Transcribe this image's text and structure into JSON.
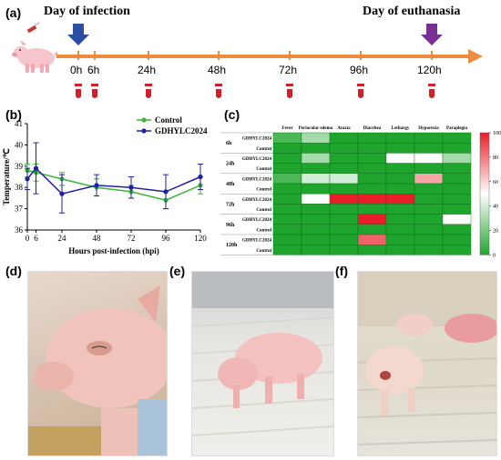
{
  "panels": {
    "a": "(a)",
    "b": "(b)",
    "c": "(c)",
    "d": "(d)",
    "e": "(e)",
    "f": "(f)"
  },
  "timeline": {
    "infection_label": "Day of infection",
    "euthanasia_label": "Day of euthanasia",
    "ticks": [
      "0h",
      "6h",
      "24h",
      "48h",
      "72h",
      "96h",
      "120h"
    ],
    "colors": {
      "axis": "#f08a3c",
      "infection_arrow": "#2b4da3",
      "euthanasia_arrow": "#7a2f96",
      "tube": "#d0202a"
    }
  },
  "chart_data": [
    {
      "type": "line",
      "x": [
        0,
        6,
        24,
        48,
        72,
        96,
        120
      ],
      "xticks": [
        "0",
        "6",
        "24",
        "48",
        "72",
        "96",
        "120"
      ],
      "xlabel": "Hours post-infection (hpi)",
      "ylabel": "Temperature/℃",
      "ylim": [
        36,
        41
      ],
      "yticks": [
        "36",
        "37",
        "38",
        "39",
        "40",
        "41"
      ],
      "legend": "top-right",
      "series": [
        {
          "name": "Control",
          "color": "#3db33a",
          "values": [
            38.8,
            38.7,
            38.4,
            38.0,
            37.8,
            37.4,
            38.1
          ],
          "err": [
            0.3,
            0.4,
            0.3,
            0.4,
            0.3,
            0.4,
            0.4
          ]
        },
        {
          "name": "GDHYLC2024",
          "color": "#1f1fa8",
          "values": [
            38.4,
            38.9,
            37.7,
            38.1,
            38.0,
            37.8,
            38.5
          ],
          "err": [
            0.5,
            1.2,
            0.9,
            0.5,
            0.5,
            0.8,
            0.6
          ]
        }
      ]
    },
    {
      "type": "heatmap",
      "columns": [
        "Fever",
        "Periocular edema",
        "Ataxia",
        "Diarrhea",
        "Lethargy",
        "Hyporexia",
        "Paraplegia"
      ],
      "groups": [
        "6h",
        "24h",
        "48h",
        "72h",
        "96h",
        "120h"
      ],
      "row_labels": [
        "GDHYLC2024",
        "Control"
      ],
      "values": [
        [
          10,
          30,
          0,
          0,
          0,
          0,
          0
        ],
        [
          0,
          0,
          0,
          0,
          0,
          0,
          0
        ],
        [
          0,
          30,
          0,
          0,
          50,
          50,
          30
        ],
        [
          0,
          0,
          0,
          0,
          0,
          0,
          0
        ],
        [
          10,
          40,
          40,
          0,
          0,
          70,
          0
        ],
        [
          0,
          0,
          0,
          0,
          0,
          0,
          0
        ],
        [
          0,
          50,
          100,
          100,
          100,
          0,
          0
        ],
        [
          0,
          0,
          0,
          0,
          0,
          0,
          0
        ],
        [
          0,
          0,
          0,
          100,
          0,
          0,
          50
        ],
        [
          0,
          0,
          0,
          0,
          0,
          0,
          0
        ],
        [
          0,
          0,
          0,
          85,
          0,
          0,
          0
        ],
        [
          0,
          0,
          0,
          0,
          0,
          0,
          0
        ]
      ],
      "colorbar_ticks": [
        "0",
        "20",
        "40",
        "60",
        "80",
        "100"
      ],
      "vmin": 0,
      "vmax": 100
    }
  ]
}
